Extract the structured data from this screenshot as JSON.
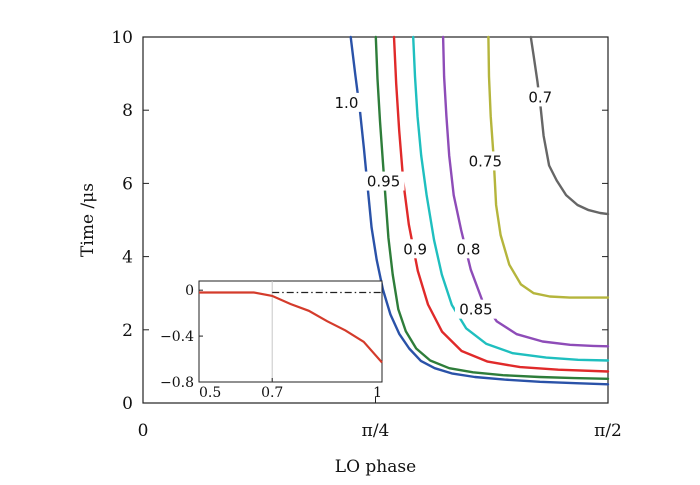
{
  "chart_data": [
    {
      "type": "line",
      "title": "",
      "xlabel": "LO phase",
      "ylabel": "Time /μs",
      "x_tick_labels": [
        "0",
        "π/4",
        "π/2"
      ],
      "x_tick_values": [
        0,
        0.7854,
        1.5708
      ],
      "y_tick_labels": [
        "0",
        "2",
        "4",
        "6",
        "8",
        "10"
      ],
      "y_tick_values": [
        0,
        2,
        4,
        6,
        8,
        10
      ],
      "xlim": [
        0,
        1.5708
      ],
      "ylim": [
        0,
        10
      ],
      "grid": false,
      "series": [
        {
          "name": "1.0",
          "color": "#2a52a8",
          "label": "1.0",
          "label_at": [
            0.6873,
            8.2
          ],
          "x": [
            0.7016,
            0.7167,
            0.7331,
            0.7461,
            0.7585,
            0.7722,
            0.7895,
            0.8103,
            0.8357,
            0.8654,
            0.8991,
            0.9386,
            0.9855,
            1.0429,
            1.1207,
            1.2211,
            1.341,
            1.4624,
            1.5708
          ],
          "y": [
            10.0,
            8.99,
            7.97,
            6.96,
            5.94,
            4.79,
            3.91,
            3.1,
            2.42,
            1.89,
            1.49,
            1.15,
            0.95,
            0.81,
            0.71,
            0.64,
            0.58,
            0.54,
            0.51
          ]
        },
        {
          "name": "0.95",
          "color": "#2e7d3a",
          "label": "0.95",
          "label_at": [
            0.8126,
            6.05
          ],
          "x": [
            0.7864,
            0.7922,
            0.8006,
            0.8106,
            0.8199,
            0.829,
            0.8434,
            0.8625,
            0.8878,
            0.9228,
            0.9701,
            1.0344,
            1.1148,
            1.2156,
            1.3389,
            1.4563,
            1.5708
          ],
          "y": [
            10.0,
            8.85,
            7.7,
            6.55,
            5.53,
            4.52,
            3.51,
            2.56,
            1.96,
            1.49,
            1.16,
            0.95,
            0.84,
            0.76,
            0.71,
            0.68,
            0.66
          ]
        },
        {
          "name": "0.9",
          "color": "#e02a2a",
          "label": "0.9",
          "label_at": [
            0.9193,
            4.2
          ],
          "x": [
            0.8479,
            0.8554,
            0.8654,
            0.8796,
            0.8979,
            0.9284,
            0.9628,
            1.01,
            1.0764,
            1.1642,
            1.2739,
            1.4028,
            1.5708
          ],
          "y": [
            10.0,
            8.72,
            7.44,
            6.02,
            4.88,
            3.61,
            2.69,
            1.95,
            1.42,
            1.13,
            0.98,
            0.91,
            0.86
          ]
        },
        {
          "name": "0.85",
          "color": "#1fbfbf",
          "label": "0.85",
          "label_at": [
            1.1248,
            2.55
          ],
          "x": [
            0.9128,
            0.9189,
            0.9272,
            0.9397,
            0.958,
            0.9829,
            1.0093,
            1.043,
            1.0915,
            1.159,
            1.2489,
            1.3621,
            1.4697,
            1.5708
          ],
          "y": [
            10.0,
            8.92,
            7.84,
            6.76,
            5.68,
            4.46,
            3.51,
            2.68,
            2.04,
            1.62,
            1.36,
            1.24,
            1.18,
            1.16
          ]
        },
        {
          "name": "0.8",
          "color": "#8e4cb8",
          "label": "0.8",
          "label_at": [
            1.0994,
            4.2
          ],
          "x": [
            1.0136,
            1.0171,
            1.0248,
            1.0343,
            1.0496,
            1.0747,
            1.1071,
            1.1461,
            1.1951,
            1.2628,
            1.3498,
            1.4427,
            1.5208,
            1.5708
          ],
          "y": [
            10.0,
            8.92,
            7.84,
            6.76,
            5.68,
            4.73,
            3.65,
            2.8,
            2.23,
            1.88,
            1.68,
            1.59,
            1.56,
            1.55
          ]
        },
        {
          "name": "0.75",
          "color": "#b5b53c",
          "label": "0.75",
          "label_at": [
            1.1565,
            6.6
          ],
          "x": [
            1.1667,
            1.1687,
            1.1746,
            1.1841,
            1.1927,
            1.2081,
            1.2374,
            1.2767,
            1.3198,
            1.3743,
            1.4415,
            1.5081,
            1.5708
          ],
          "y": [
            10.0,
            8.92,
            7.84,
            6.76,
            5.41,
            4.59,
            3.78,
            3.24,
            3.0,
            2.91,
            2.88,
            2.88,
            2.88
          ]
        },
        {
          "name": "0.7",
          "color": "#666666",
          "label": "0.7",
          "label_at": [
            1.3421,
            8.35
          ],
          "x": [
            1.3099,
            1.3203,
            1.3322,
            1.3429,
            1.3533,
            1.3719,
            1.3974,
            1.4292,
            1.4679,
            1.5053,
            1.5442,
            1.5708
          ],
          "y": [
            10.0,
            9.46,
            8.79,
            8.11,
            7.3,
            6.49,
            6.08,
            5.68,
            5.41,
            5.27,
            5.19,
            5.16
          ]
        }
      ]
    },
    {
      "type": "line",
      "title": "",
      "xlabel": "",
      "ylabel": "",
      "x_tick_labels": [
        "0.5",
        "0.7",
        "1"
      ],
      "x_tick_values": [
        0.5,
        0.7,
        1.0
      ],
      "y_tick_labels": [
        "0",
        "−0.4",
        "−0.8"
      ],
      "y_tick_values": [
        0,
        -0.4,
        -0.8
      ],
      "xlim": [
        0.5,
        1.0
      ],
      "ylim": [
        -0.8,
        0.08
      ],
      "grid": false,
      "vertical_reference_line": 0.7,
      "series": [
        {
          "name": "",
          "color": "#d43b2b",
          "style": "solid",
          "x": [
            0.5,
            0.55,
            0.6,
            0.65,
            0.7,
            0.75,
            0.8,
            0.85,
            0.9,
            0.95,
            1.0
          ],
          "y": [
            -0.02,
            -0.02,
            -0.02,
            -0.02,
            -0.05,
            -0.12,
            -0.18,
            -0.27,
            -0.35,
            -0.45,
            -0.63
          ]
        },
        {
          "name": "",
          "color": "#222222",
          "style": "dash-dot",
          "x": [
            0.7,
            1.0
          ],
          "y": [
            -0.02,
            -0.02
          ]
        }
      ]
    }
  ]
}
